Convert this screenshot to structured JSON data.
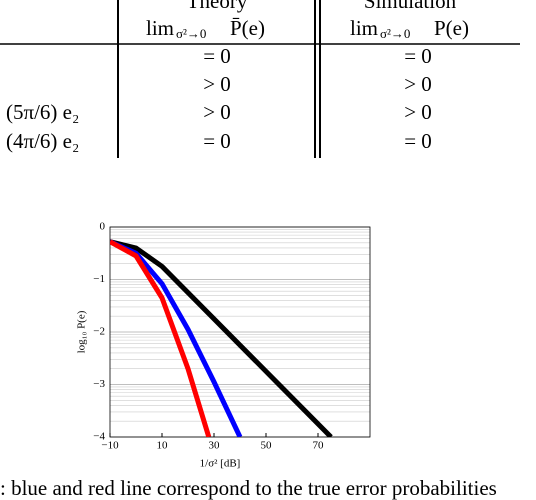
{
  "table": {
    "header": [
      {
        "title": "Theory",
        "lim": "lim",
        "sub": "σ²→0",
        "expr": "P̄(e)"
      },
      {
        "title": "Simulation",
        "lim": "lim",
        "sub": "σ²→0",
        "expr": "P(e)"
      }
    ],
    "rows": [
      [
        "",
        "= 0",
        "= 0"
      ],
      [
        "",
        "> 0",
        "> 0"
      ],
      [
        "(5π/6) e₂",
        "> 0",
        "> 0"
      ],
      [
        "(4π/6) e₂",
        "= 0",
        "= 0"
      ]
    ]
  },
  "chart_data": {
    "type": "line",
    "xlabel": "1/σ² [dB]",
    "ylabel": "log₁₀ P(e)",
    "xlim": [
      -10,
      90
    ],
    "ylim": [
      -4,
      0
    ],
    "xticks": [
      {
        "value": -10,
        "label": "−10"
      },
      10,
      30,
      50,
      70
    ],
    "yticks": [
      0,
      {
        "value": -1,
        "label": "−1"
      },
      {
        "value": -2,
        "label": "−2"
      },
      {
        "value": -3,
        "label": "−3"
      },
      {
        "value": -4,
        "label": "−4"
      }
    ],
    "grid": true,
    "series": [
      {
        "color": "#000000",
        "x": [
          -10,
          0,
          10,
          75
        ],
        "values": [
          -0.28,
          -0.4,
          -0.75,
          -4
        ]
      },
      {
        "color": "#0000ff",
        "x": [
          -10,
          0,
          10,
          20,
          30,
          40
        ],
        "values": [
          -0.28,
          -0.5,
          -1.08,
          -1.95,
          -2.95,
          -4
        ]
      },
      {
        "color": "#ff0000",
        "x": [
          -10,
          0,
          10,
          20,
          28
        ],
        "values": [
          -0.28,
          -0.55,
          -1.35,
          -2.7,
          -4
        ]
      }
    ]
  },
  "caption": ": blue and red line correspond to the true error probabilities"
}
